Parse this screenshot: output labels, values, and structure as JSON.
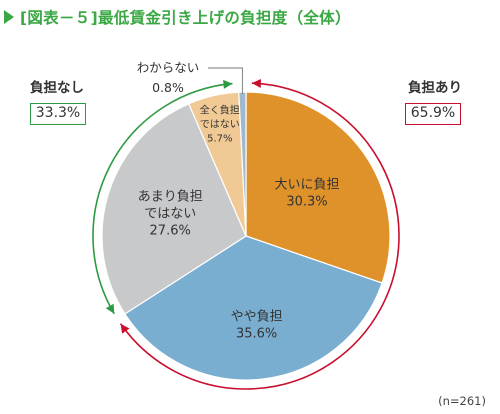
{
  "title": "[図表－５]最低賃金引き上げの負担度（全体）",
  "groups": {
    "left": {
      "label": "負担なし",
      "value": "33.3%",
      "color": "#2e9a42"
    },
    "right": {
      "label": "負担あり",
      "value": "65.9%",
      "color": "#c8102e"
    }
  },
  "note": "(n=261)",
  "chart_data": {
    "type": "pie",
    "title": "[図表－５]最低賃金引き上げの負担度（全体）",
    "start_angle_deg": 0,
    "direction": "clockwise",
    "slices": [
      {
        "label": "大いに負担",
        "label_lines": [
          "大いに負担"
        ],
        "value": 30.3,
        "value_text": "30.3%",
        "color": "#e0922a"
      },
      {
        "label": "やや負担",
        "label_lines": [
          "やや負担"
        ],
        "value": 35.6,
        "value_text": "35.6%",
        "color": "#7aaed0"
      },
      {
        "label": "あまり負担ではない",
        "label_lines": [
          "あまり負担",
          "ではない"
        ],
        "value": 27.6,
        "value_text": "27.6%",
        "color": "#c8c9cb"
      },
      {
        "label": "全く負担ではない",
        "label_lines": [
          "全く負担",
          "ではない"
        ],
        "value": 5.7,
        "value_text": "5.7%",
        "color": "#f0c995"
      },
      {
        "label": "わからない",
        "label_lines": [
          "わからない"
        ],
        "value": 0.8,
        "value_text": "0.8%",
        "color": "#9fb8ce"
      }
    ]
  }
}
